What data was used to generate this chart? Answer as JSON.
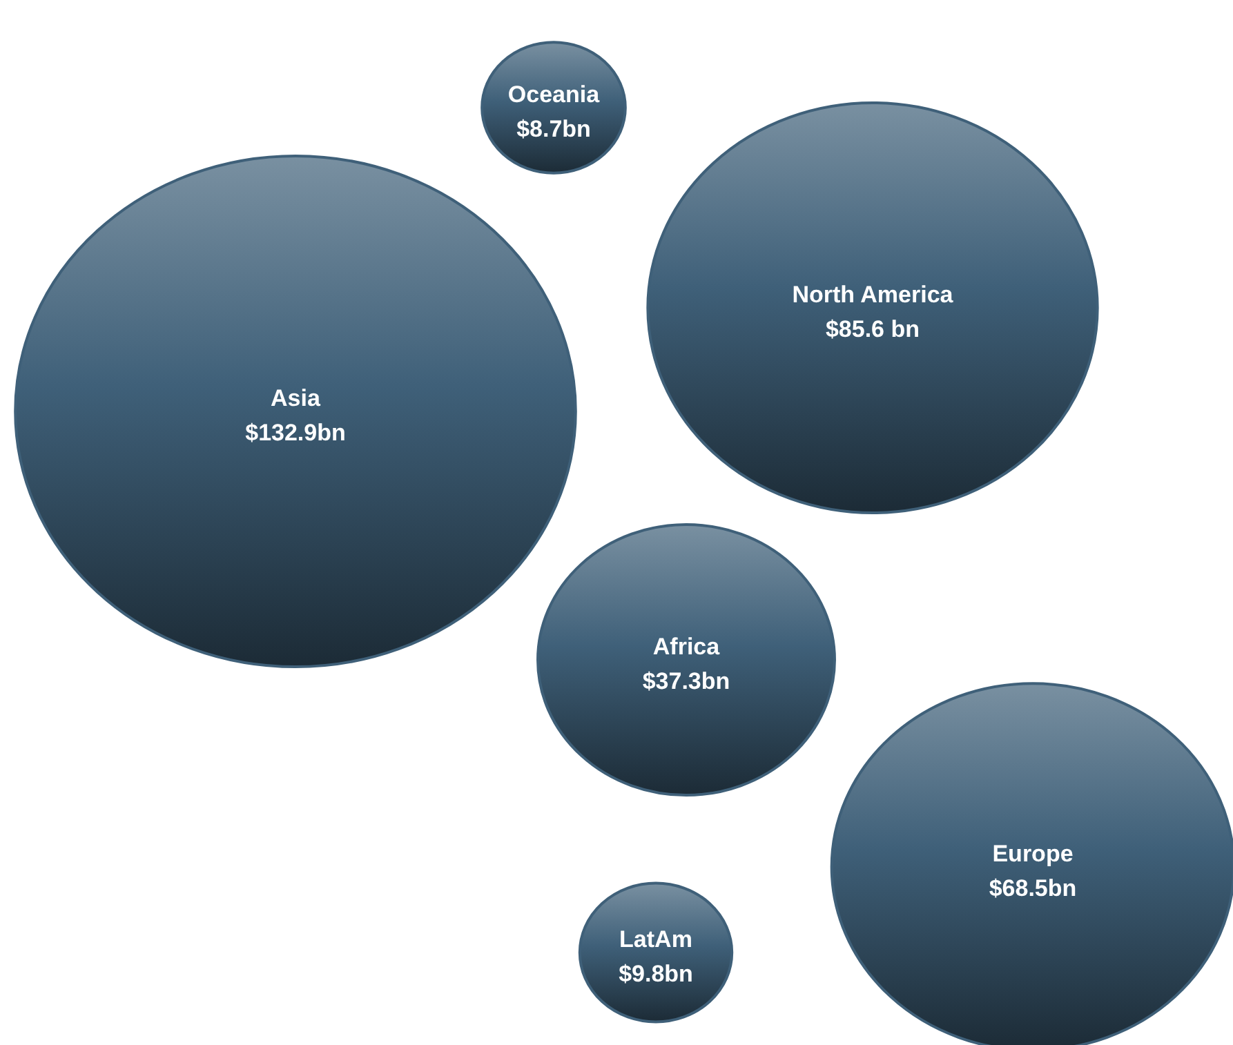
{
  "chart_data": {
    "type": "other",
    "categories": [
      "Oceania",
      "Asia",
      "North America",
      "Africa",
      "Europe",
      "LatAm"
    ],
    "values": [
      8.7,
      132.9,
      85.6,
      37.3,
      68.5,
      9.8
    ],
    "value_labels": [
      "$8.7bn",
      "$132.9bn",
      "$85.6 bn",
      "$37.3bn",
      "$68.5bn",
      "$9.8bn"
    ],
    "color": "#3f6079"
  }
}
